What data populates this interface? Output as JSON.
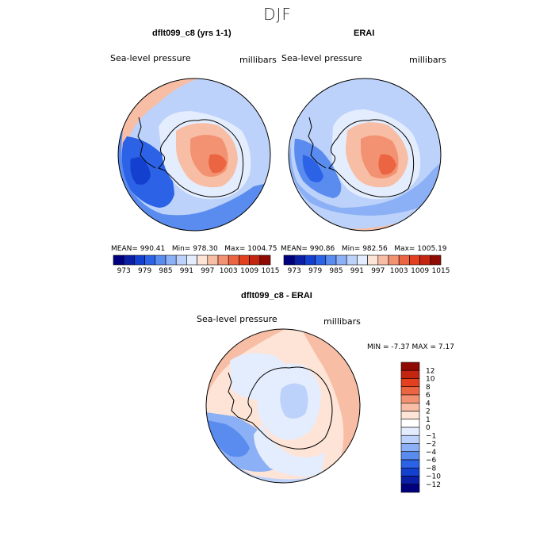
{
  "title": "DJF",
  "panels": [
    {
      "title": "dflt099_c8 (yrs 1-1)",
      "field": "Sea-level pressure",
      "units": "millibars",
      "mean_text": "MEAN= 990.41",
      "min_text": "Min= 978.30",
      "max_text": "Max= 1004.75"
    },
    {
      "title": "ERAI",
      "field": "Sea-level pressure",
      "units": "millibars",
      "mean_text": "MEAN= 990.86",
      "min_text": "Min= 982.56",
      "max_text": "Max= 1005.19"
    },
    {
      "title": "dflt099_c8 - ERAI",
      "field": "Sea-level pressure",
      "units": "millibars",
      "minmax_text": "MIN =   -7.37 MAX =    7.17"
    }
  ],
  "colorbar_top": {
    "labels": [
      "973",
      "979",
      "985",
      "991",
      "997",
      "1003",
      "1009",
      "1015"
    ],
    "colors": [
      "#00007f",
      "#0a1fa6",
      "#1440d0",
      "#2c62e6",
      "#5a8cf0",
      "#8cb0f5",
      "#bcd2fa",
      "#e4edfd",
      "#fde4d7",
      "#f8bea5",
      "#f29272",
      "#ec6543",
      "#e2401f",
      "#c42510",
      "#8e0a02"
    ]
  },
  "colorbar_diff": {
    "labels": [
      "12",
      "10",
      "8",
      "6",
      "4",
      "2",
      "1",
      "0",
      "−1",
      "−2",
      "−4",
      "−6",
      "−8",
      "−10",
      "−12"
    ],
    "colors": [
      "#8e0a02",
      "#c42510",
      "#e2401f",
      "#ec6543",
      "#f29272",
      "#f8bea5",
      "#fde4d7",
      "#ffffff",
      "#e4edfd",
      "#bcd2fa",
      "#8cb0f5",
      "#5a8cf0",
      "#2c62e6",
      "#1440d0",
      "#0a1fa6",
      "#00007f"
    ]
  }
}
